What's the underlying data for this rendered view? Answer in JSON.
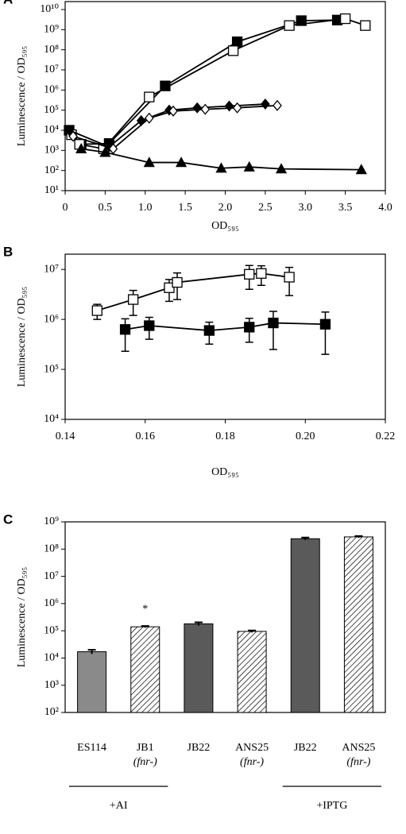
{
  "chart_data": [
    {
      "type": "line",
      "panel": "A",
      "x_label": "OD₅₉₅",
      "y_label": "Luminescence / OD₅₉₅",
      "log_y": true,
      "xlim": [
        0,
        4
      ],
      "ylim": [
        10,
        10000000000
      ],
      "xticks": [
        0,
        0.5,
        {
          "value": 1,
          "label": "1.0"
        },
        1.5,
        {
          "value": 2,
          "label": "2.0"
        },
        2.5,
        {
          "value": 3,
          "label": "3.0"
        },
        3.5,
        {
          "value": 4,
          "label": "4.0"
        }
      ],
      "yticks": [
        {
          "value": 10,
          "label": "10¹"
        },
        {
          "value": 100,
          "label": "10²"
        },
        {
          "value": 1000,
          "label": "10³"
        },
        {
          "value": 10000,
          "label": "10⁴"
        },
        {
          "value": 100000,
          "label": "10⁵"
        },
        {
          "value": 1000000,
          "label": "10⁶"
        },
        {
          "value": 10000000,
          "label": "10⁷"
        },
        {
          "value": 100000000,
          "label": "10⁸"
        },
        {
          "value": 1000000000,
          "label": "10⁹"
        },
        {
          "value": 10000000000,
          "label": "10¹⁰"
        }
      ],
      "series": [
        {
          "color": "#000000",
          "marker": "square",
          "filled": true,
          "x": [
            0.05,
            0.2,
            0.55,
            1.25,
            2.15,
            2.95,
            3.4
          ],
          "values": [
            10000,
            2000,
            2200,
            1600000,
            250000000,
            2800000000,
            3000000000
          ]
        },
        {
          "color": "#000000",
          "marker": "square",
          "filled": false,
          "x": [
            0.08,
            0.18,
            0.48,
            1.05,
            2.1,
            2.8,
            3.5,
            3.75
          ],
          "values": [
            6000,
            2000,
            1200,
            450000,
            90000000,
            1600000000,
            3500000000,
            1600000000
          ]
        },
        {
          "color": "#000000",
          "marker": "diamond",
          "filled": true,
          "x": [
            0.05,
            0.55,
            0.95,
            1.3,
            1.65,
            2.05,
            2.5
          ],
          "values": [
            10000,
            1500,
            30000,
            100000,
            130000,
            160000,
            200000
          ]
        },
        {
          "color": "#000000",
          "marker": "diamond",
          "filled": false,
          "x": [
            0.1,
            0.6,
            1.05,
            1.35,
            1.75,
            2.15,
            2.65
          ],
          "values": [
            5000,
            1200,
            40000,
            90000,
            110000,
            130000,
            170000
          ]
        },
        {
          "color": "#000000",
          "marker": "triangle",
          "filled": true,
          "x": [
            0.2,
            0.5,
            1.05,
            1.45,
            1.95,
            2.3,
            2.7,
            3.7
          ],
          "values": [
            1200,
            800,
            250,
            250,
            130,
            150,
            120,
            110
          ]
        }
      ]
    },
    {
      "type": "line",
      "panel": "B",
      "x_label": "OD₅₉₅",
      "y_label": "Luminescence / OD₅₉₅",
      "log_y": true,
      "xlim": [
        0.14,
        0.22
      ],
      "ylim": [
        10000,
        14000000
      ],
      "xticks": [
        0.14,
        0.16,
        0.18,
        {
          "value": 0.2,
          "label": "0.20"
        },
        0.22
      ],
      "yticks": [
        {
          "value": 10000,
          "label": "10⁴"
        },
        {
          "value": 100000,
          "label": "10⁵"
        },
        {
          "value": 1000000,
          "label": "10⁶"
        },
        {
          "value": 10000000,
          "label": "10⁷"
        }
      ],
      "series": [
        {
          "color": "#000000",
          "marker": "square",
          "filled": false,
          "x": [
            0.148,
            0.157,
            0.166,
            0.168,
            0.186,
            0.189,
            0.196
          ],
          "values": [
            1500000,
            2500000,
            4300000,
            5500000,
            8000000,
            8300000,
            7000000
          ],
          "errors": [
            500000,
            1300000,
            2000000,
            3000000,
            4000000,
            3500000,
            4000000
          ]
        },
        {
          "color": "#000000",
          "marker": "square",
          "filled": true,
          "x": [
            0.155,
            0.161,
            0.176,
            0.186,
            0.192,
            0.205
          ],
          "values": [
            630000,
            750000,
            600000,
            700000,
            850000,
            800000
          ],
          "errors": [
            400000,
            350000,
            280000,
            350000,
            600000,
            600000
          ]
        }
      ]
    },
    {
      "type": "bar",
      "panel": "C",
      "y_label": "Luminescence / OD₅₉₅",
      "log_y": true,
      "ylim": [
        100,
        1000000000
      ],
      "yticks": [
        {
          "value": 100,
          "label": "10²"
        },
        {
          "value": 1000,
          "label": "10³"
        },
        {
          "value": 10000,
          "label": "10⁴"
        },
        {
          "value": 100000,
          "label": "10⁵"
        },
        {
          "value": 1000000,
          "label": "10⁶"
        },
        {
          "value": 10000000,
          "label": "10⁷"
        },
        {
          "value": 100000000,
          "label": "10⁸"
        },
        {
          "value": 1000000000,
          "label": "10⁹"
        }
      ],
      "categories": [
        "ES114",
        "JB1",
        "JB22",
        "ANS25",
        "JB22",
        "ANS25"
      ],
      "sublabels": [
        null,
        "(fnr-)",
        null,
        "(fnr-)",
        null,
        "(fnr-)"
      ],
      "values": [
        17000,
        140000,
        180000,
        95000,
        240000000,
        280000000
      ],
      "errors": [
        3000,
        10000,
        25000,
        8000,
        25000000,
        20000000
      ],
      "colors": [
        "#8a8a8a",
        "#ffffff",
        "#5a5a5a",
        "#ffffff",
        "#5a5a5a",
        "#ffffff"
      ],
      "hatched": [
        false,
        true,
        false,
        true,
        false,
        true
      ],
      "annotations": [
        "*"
      ],
      "group_labels": [
        "+AI",
        "+IPTG"
      ]
    }
  ]
}
